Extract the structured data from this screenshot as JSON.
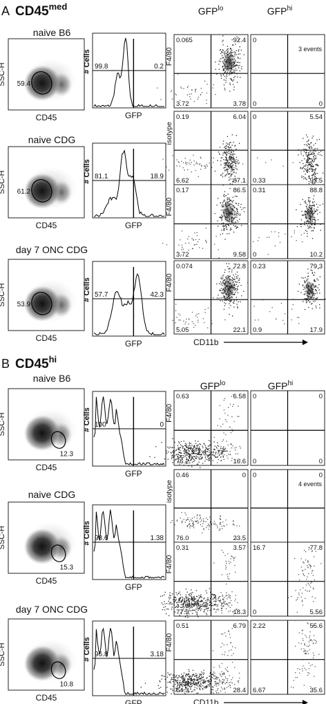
{
  "panels": [
    {
      "letter": "A",
      "marker": "CD45",
      "marker_sup": "med",
      "gfp_headers": {
        "lo": "GFP",
        "lo_sup": "lo",
        "hi": "GFP",
        "hi_sup": "hi"
      },
      "rows": [
        {
          "title": "naive B6",
          "density": {
            "ylabel": "SSC-H",
            "xlabel": "CD45",
            "gate_value": "59.4",
            "gate": "med"
          },
          "histogram": {
            "ylabel": "# Cells",
            "xlabel": "GFP",
            "left_value": "99.8",
            "right_value": "0.2",
            "shape": "narrow"
          },
          "quadrants": [
            {
              "ylabel": "F4/80",
              "population": "lo",
              "tl": "0.065",
              "tr": "92.4",
              "bl": "3.72",
              "br": "3.78",
              "note": ""
            },
            {
              "ylabel": "",
              "population": "none",
              "tl": "0",
              "tr": "",
              "bl": "0",
              "br": "0",
              "note": "3 events"
            }
          ]
        },
        {
          "title": "naive CDG",
          "density": {
            "ylabel": "SSC-H",
            "xlabel": "CD45",
            "gate_value": "61.2",
            "gate": "med"
          },
          "histogram": {
            "ylabel": "# Cells",
            "xlabel": "GFP",
            "left_value": "81.1",
            "right_value": "18.9",
            "shape": "skew"
          },
          "quadrants": [
            {
              "ylabel": "isotype",
              "population": "lo-br",
              "tl": "0.19",
              "tr": "6.04",
              "bl": "6.62",
              "br": "87.1",
              "note": ""
            },
            {
              "ylabel": "",
              "population": "hi-br",
              "tl": "0",
              "tr": "5.54",
              "bl": "0.33",
              "br": "93.5",
              "note": ""
            }
          ]
        },
        {
          "title": "",
          "density": null,
          "histogram": null,
          "quadrants": [
            {
              "ylabel": "F4/80",
              "population": "lo",
              "tl": "0.17",
              "tr": "86.5",
              "bl": "3.72",
              "br": "9.58",
              "note": ""
            },
            {
              "ylabel": "",
              "population": "hi",
              "tl": "0.31",
              "tr": "88.8",
              "bl": "0",
              "br": "10.2",
              "note": ""
            }
          ]
        },
        {
          "title": "day 7 ONC CDG",
          "density": {
            "ylabel": "SSC-H",
            "xlabel": "CD45",
            "gate_value": "53.9",
            "gate": "med"
          },
          "histogram": {
            "ylabel": "# Cells",
            "xlabel": "GFP",
            "left_value": "57.7",
            "right_value": "42.3",
            "shape": "bimodal"
          },
          "quadrants": [
            {
              "ylabel": "F4/80",
              "population": "lo",
              "tl": "0.074",
              "tr": "72.8",
              "bl": "5.05",
              "br": "22.1",
              "note": ""
            },
            {
              "ylabel": "",
              "population": "hi",
              "tl": "0.23",
              "tr": "79.3",
              "bl": "0.9",
              "br": "17.9",
              "note": ""
            }
          ],
          "xaxis": "CD11b"
        }
      ]
    },
    {
      "letter": "B",
      "marker": "CD45",
      "marker_sup": "hi",
      "gfp_headers": {
        "lo": "GFP",
        "lo_sup": "lo",
        "hi": "GFP",
        "hi_sup": "hi"
      },
      "rows": [
        {
          "title": "naive B6",
          "density": {
            "ylabel": "SSC-H",
            "xlabel": "CD45",
            "gate_value": "12.3",
            "gate": "hi"
          },
          "histogram": {
            "ylabel": "# Cells",
            "xlabel": "GFP",
            "left_value": "100",
            "right_value": "0",
            "shape": "left"
          },
          "quadrants": [
            {
              "ylabel": "F4/80",
              "population": "bl",
              "tl": "0.63",
              "tr": "6.58",
              "bl": "76.2",
              "br": "16.6",
              "note": ""
            },
            {
              "ylabel": "",
              "population": "none",
              "tl": "0",
              "tr": "0",
              "bl": "0",
              "br": "0",
              "note": ""
            }
          ]
        },
        {
          "title": "naive CDG",
          "density": {
            "ylabel": "SSC-H",
            "xlabel": "CD45",
            "gate_value": "15.3",
            "gate": "hi"
          },
          "histogram": {
            "ylabel": "# Cells",
            "xlabel": "GFP",
            "left_value": "98.6",
            "right_value": "1.38",
            "shape": "left"
          },
          "quadrants": [
            {
              "ylabel": "isotype",
              "population": "bl-sparse",
              "tl": "0.46",
              "tr": "0",
              "bl": "76.0",
              "br": "23.5",
              "note": ""
            },
            {
              "ylabel": "",
              "population": "none",
              "tl": "0",
              "tr": "0",
              "bl": "",
              "br": "",
              "note": "4 events"
            }
          ]
        },
        {
          "title": "",
          "density": null,
          "histogram": null,
          "quadrants": [
            {
              "ylabel": "F4/80",
              "population": "bl",
              "tl": "0.31",
              "tr": "3.57",
              "bl": "77.9",
              "br": "18.3",
              "note": ""
            },
            {
              "ylabel": "",
              "population": "hi-sparse",
              "tl": "16.7",
              "tr": "77.8",
              "bl": "0",
              "br": "5.56",
              "note": ""
            }
          ]
        },
        {
          "title": "day 7 ONC CDG",
          "density": {
            "ylabel": "SSC-H",
            "xlabel": "CD45",
            "gate_value": "10.8",
            "gate": "hi"
          },
          "histogram": {
            "ylabel": "# Cells",
            "xlabel": "GFP",
            "left_value": "96.8",
            "right_value": "3.18",
            "shape": "left"
          },
          "quadrants": [
            {
              "ylabel": "F4/80",
              "population": "bl",
              "tl": "0.51",
              "tr": "6.79",
              "bl": "64.3",
              "br": "28.4",
              "note": ""
            },
            {
              "ylabel": "",
              "population": "hi-sparse",
              "tl": "2.22",
              "tr": "55.6",
              "bl": "6.67",
              "br": "35.6",
              "note": ""
            }
          ],
          "xaxis": "CD11b"
        }
      ]
    }
  ]
}
